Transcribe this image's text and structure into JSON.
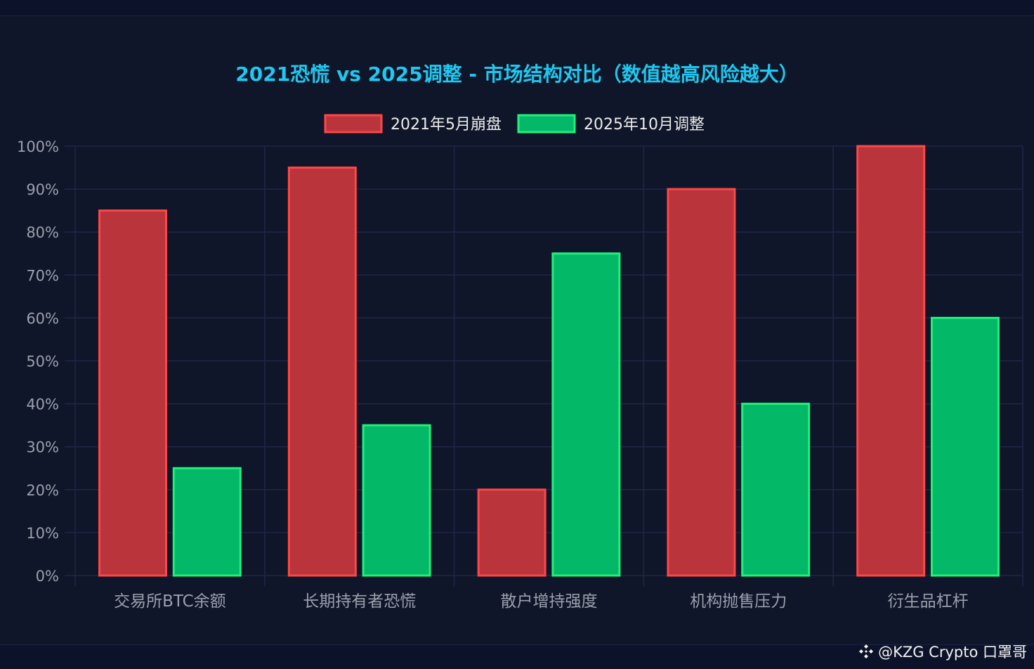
{
  "chart_data": {
    "type": "bar",
    "title": "2021恐慌 vs 2025调整 - 市场结构对比（数值越高风险越大）",
    "categories": [
      "交易所BTC余额",
      "长期持有者恐慌",
      "散户增持强度",
      "机构抛售压力",
      "衍生品杠杆"
    ],
    "series": [
      {
        "name": "2021年5月崩盘",
        "values": [
          85,
          95,
          20,
          90,
          100
        ],
        "color": "#b9343b",
        "border": "#ff4747"
      },
      {
        "name": "2025年10月调整",
        "values": [
          25,
          35,
          75,
          40,
          60
        ],
        "color": "#03b867",
        "border": "#22f07c"
      }
    ],
    "ylim": [
      0,
      100
    ],
    "yticks": [
      "0%",
      "10%",
      "20%",
      "30%",
      "40%",
      "50%",
      "60%",
      "70%",
      "80%",
      "90%",
      "100%"
    ],
    "xlabel": "",
    "ylabel": "",
    "grid": true,
    "legend": "top-center",
    "title_color": "#1ec8f0",
    "grid_color": "#1e2748",
    "tick_color": "#9aa0ad",
    "legend_text_color": "#ececec"
  },
  "watermark": {
    "text": "@KZG Crypto 口罩哥",
    "icon": "binance-diamond-icon"
  }
}
